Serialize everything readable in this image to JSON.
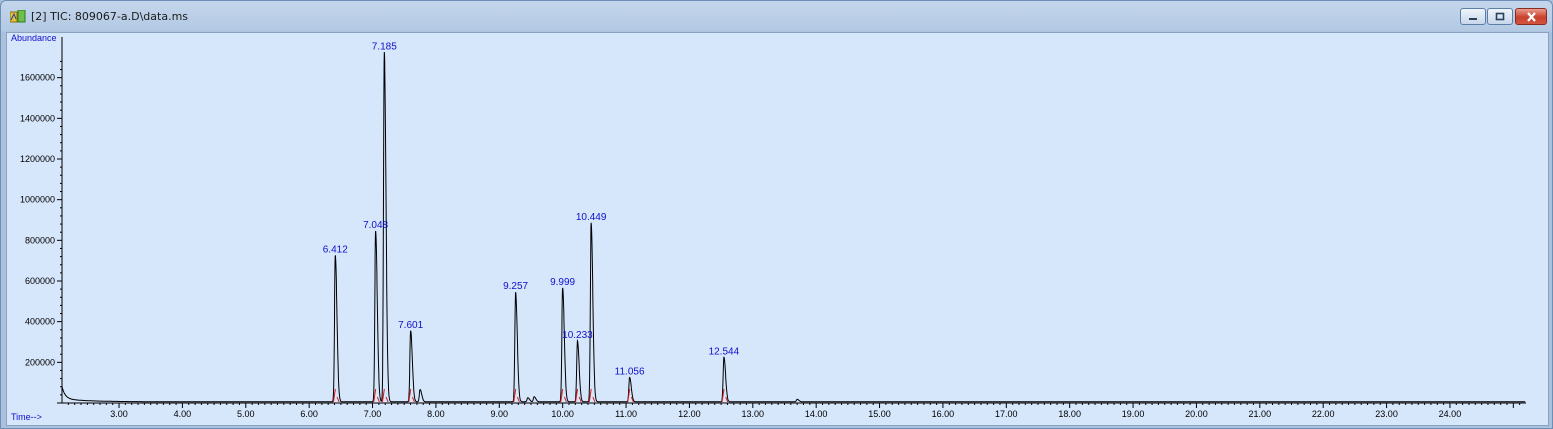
{
  "window": {
    "title": "[2] TIC: 809067-a.D\\data.ms",
    "icons": {
      "app": "chromatogram-app-icon",
      "minimize": "minimize-icon",
      "maximize": "maximize-icon",
      "close": "close-icon"
    }
  },
  "colors": {
    "background": "#d6e6fb",
    "trace": "#000000",
    "labels": "#1010cc",
    "baseline_marks": "#d81818"
  },
  "chart_data": {
    "type": "line",
    "ylabel": "Abundance",
    "xlabel": "Time-->",
    "xlim": [
      2.1,
      25.2
    ],
    "ylim": [
      0,
      1800000
    ],
    "x_ticks": [
      3.0,
      4.0,
      5.0,
      6.0,
      7.0,
      8.0,
      9.0,
      10.0,
      11.0,
      12.0,
      13.0,
      14.0,
      15.0,
      16.0,
      17.0,
      18.0,
      19.0,
      20.0,
      21.0,
      22.0,
      23.0,
      24.0
    ],
    "x_tick_labels": [
      "3.00",
      "4.00",
      "5.00",
      "6.00",
      "7.00",
      "8.00",
      "9.00",
      "10.00",
      "11.00",
      "12.00",
      "13.00",
      "14.00",
      "15.00",
      "16.00",
      "17.00",
      "18.00",
      "19.00",
      "20.00",
      "21.00",
      "22.00",
      "23.00",
      "24.00"
    ],
    "y_ticks": [
      200000,
      400000,
      600000,
      800000,
      1000000,
      1200000,
      1400000,
      1600000
    ],
    "y_tick_labels": [
      "200000",
      "400000",
      "600000",
      "800000",
      "1000000",
      "1200000",
      "1400000",
      "1600000"
    ],
    "grid": false,
    "peaks": [
      {
        "rt": 6.412,
        "label": "6.412",
        "height": 720000
      },
      {
        "rt": 7.048,
        "label": "7.048",
        "height": 840000
      },
      {
        "rt": 7.185,
        "label": "7.185",
        "height": 1720000
      },
      {
        "rt": 7.601,
        "label": "7.601",
        "height": 350000
      },
      {
        "rt": 9.257,
        "label": "9.257",
        "height": 540000
      },
      {
        "rt": 9.999,
        "label": "9.999",
        "height": 560000
      },
      {
        "rt": 10.233,
        "label": "10.233",
        "height": 300000
      },
      {
        "rt": 10.449,
        "label": "10.449",
        "height": 880000
      },
      {
        "rt": 11.056,
        "label": "11.056",
        "height": 120000
      },
      {
        "rt": 12.544,
        "label": "12.544",
        "height": 220000
      }
    ],
    "minor_peaks": [
      {
        "rt": 7.75,
        "height": 60000
      },
      {
        "rt": 9.45,
        "height": 20000
      },
      {
        "rt": 9.55,
        "height": 25000
      },
      {
        "rt": 13.7,
        "height": 12000
      }
    ]
  }
}
